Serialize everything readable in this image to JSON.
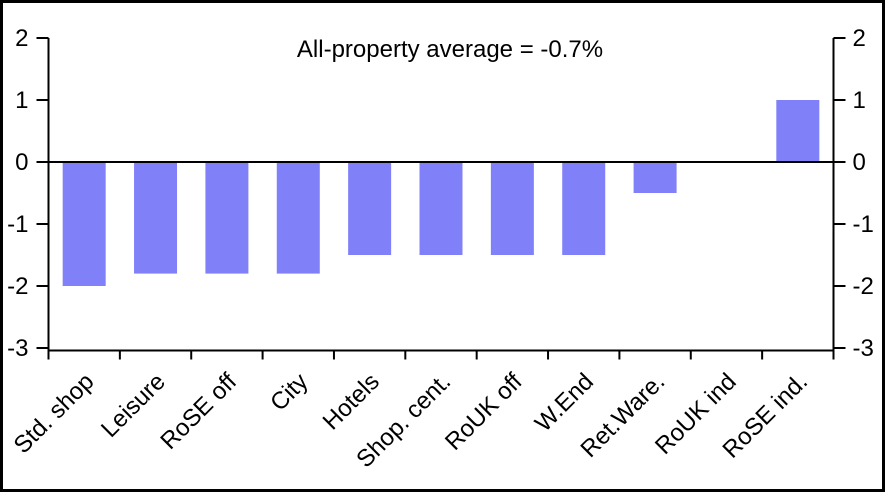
{
  "chart_data": {
    "type": "bar",
    "title": "All-property average = -0.7%",
    "all_property_average_pct": -0.7,
    "categories": [
      "Std. shop",
      "Leisure",
      "RoSE off",
      "City",
      "Hotels",
      "Shop. cent.",
      "RoUK off",
      "W.End",
      "Ret.Ware.",
      "RoUK ind",
      "RoSE ind."
    ],
    "values": [
      -2.0,
      -1.8,
      -1.8,
      -1.8,
      -1.5,
      -1.5,
      -1.5,
      -1.5,
      -0.5,
      0.0,
      1.0
    ],
    "yticks_left": [
      "2",
      "1",
      "0",
      "-1",
      "-2",
      "-3"
    ],
    "yticks_right": [
      "2",
      "1",
      "0",
      "-1",
      "-2",
      "-3"
    ],
    "ytick_values": [
      2,
      1,
      0,
      -1,
      -2,
      -3
    ],
    "ylim": [
      -3,
      2
    ],
    "xlabel": "",
    "ylabel": "",
    "legend": "none",
    "grid": "off",
    "bar_color": "#8080F8",
    "axis_color": "#000000",
    "background_color": "#FFFFFF",
    "zero_line": true,
    "category_label_rotation_deg": 45
  }
}
